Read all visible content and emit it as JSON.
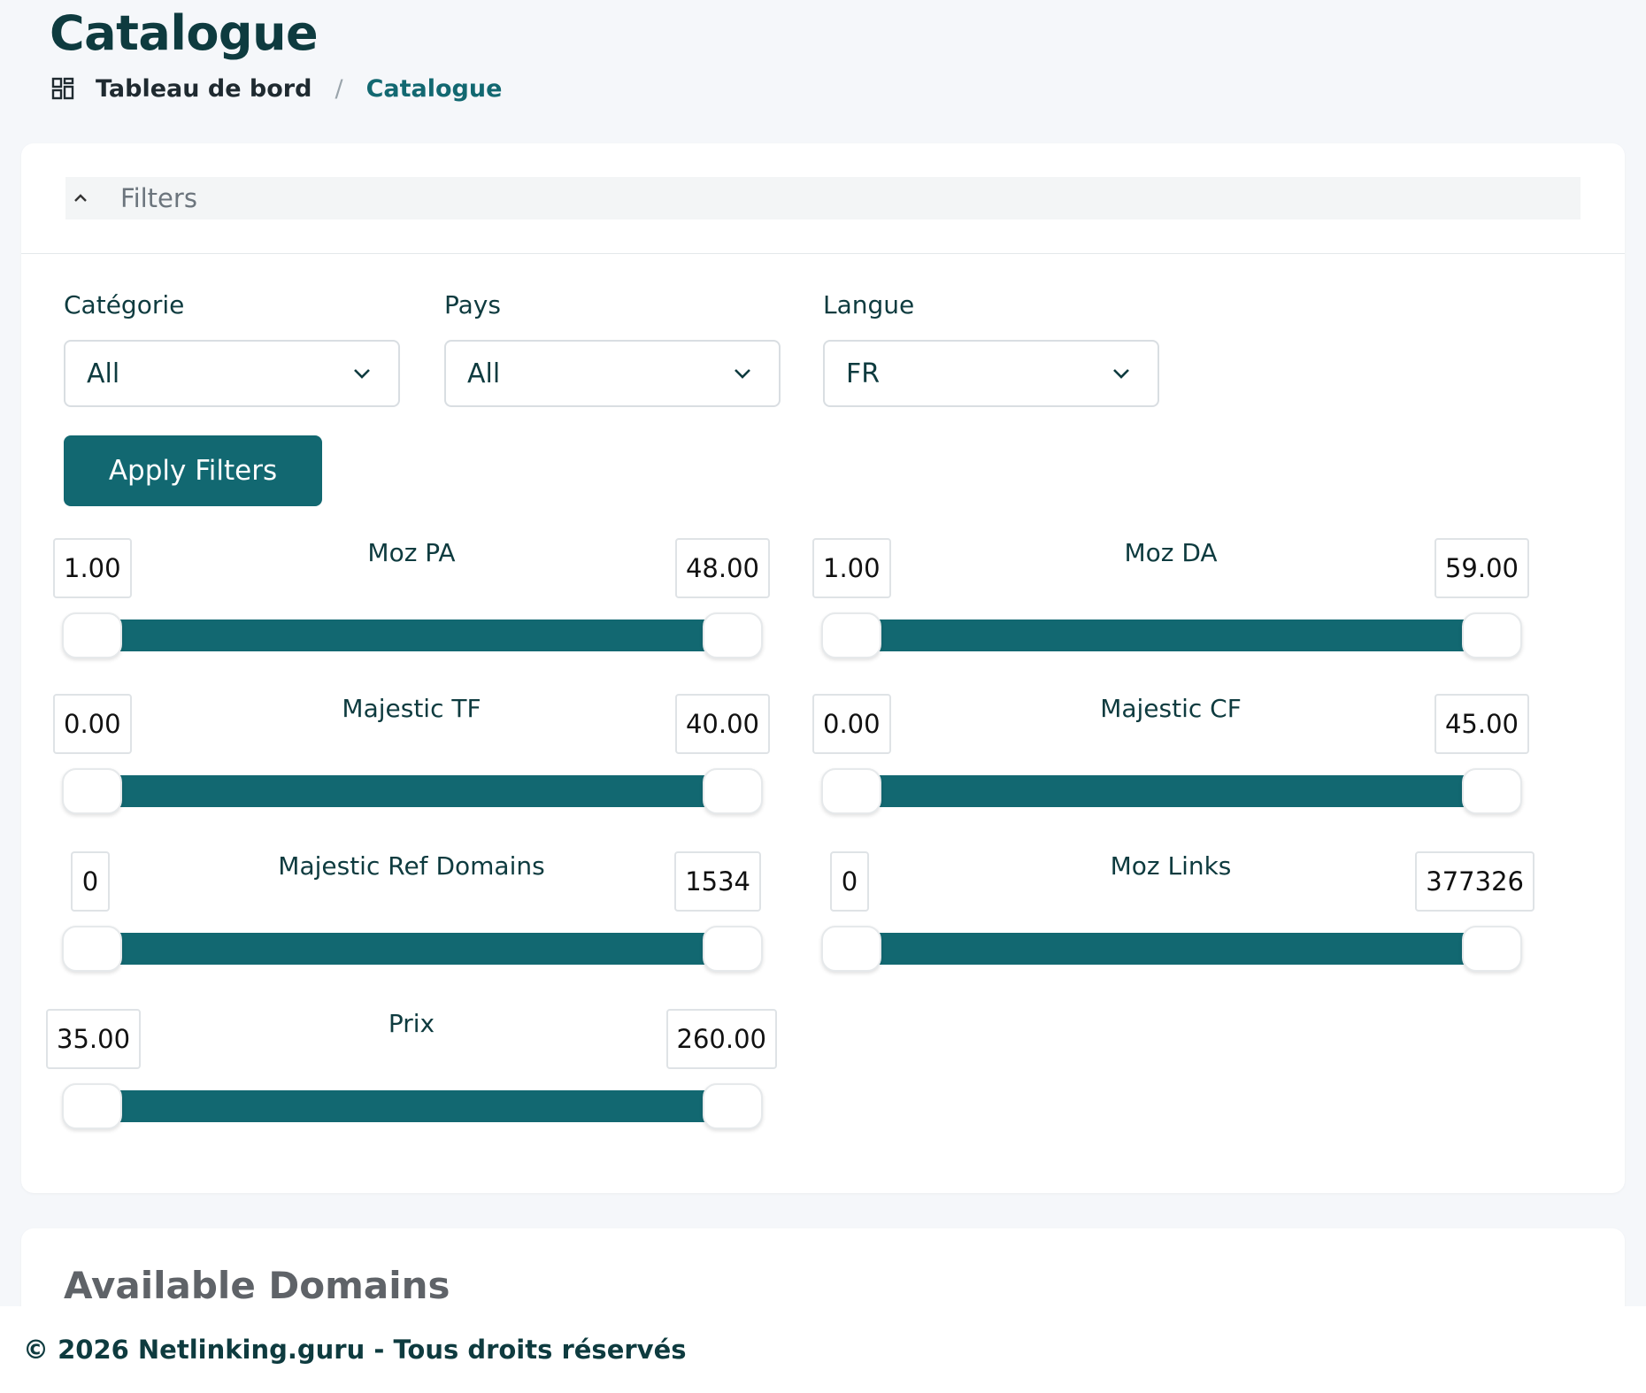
{
  "page": {
    "title": "Catalogue"
  },
  "breadcrumb": {
    "home": "Tableau de bord",
    "separator": "/",
    "current": "Catalogue"
  },
  "filters": {
    "header": "Filters",
    "categorie": {
      "label": "Catégorie",
      "value": "All"
    },
    "pays": {
      "label": "Pays",
      "value": "All"
    },
    "langue": {
      "label": "Langue",
      "value": "FR"
    },
    "apply_label": "Apply Filters",
    "ranges": [
      {
        "name": "Moz PA",
        "min": "1.00",
        "max": "48.00"
      },
      {
        "name": "Moz DA",
        "min": "1.00",
        "max": "59.00"
      },
      {
        "name": "Majestic TF",
        "min": "0.00",
        "max": "40.00"
      },
      {
        "name": "Majestic CF",
        "min": "0.00",
        "max": "45.00"
      },
      {
        "name": "Majestic Ref Domains",
        "min": "0",
        "max": "1534"
      },
      {
        "name": "Moz Links",
        "min": "0",
        "max": "377326"
      },
      {
        "name": "Prix",
        "min": "35.00",
        "max": "260.00"
      }
    ]
  },
  "domains": {
    "title": "Available Domains"
  },
  "footer": {
    "text": "© 2026 Netlinking.guru - Tous droits réservés"
  },
  "colors": {
    "accent": "#126871",
    "text": "#0e3b3f",
    "background": "#f5f7fa"
  }
}
